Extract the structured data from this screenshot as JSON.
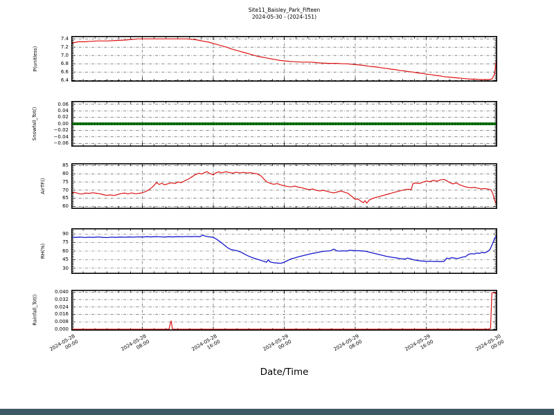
{
  "title": {
    "line1": "Site11_Baisley_Park_Fifteen",
    "line2": "2024-05-30 - (2024-151)"
  },
  "xlabel": "Date/Time",
  "chart_data": {
    "type": "line",
    "title": "Site11_Baisley_Park_Fifteen 2024-05-30 - (2024-151)",
    "xlabel": "Date/Time",
    "x_unit": "hours since 2024-05-28 00:00",
    "xlim": [
      0,
      48
    ],
    "grid": "dash-dot, major ticks only",
    "x_ticks": [
      {
        "hour": 0,
        "date": "2024-05-28",
        "time": "00:00"
      },
      {
        "hour": 8,
        "date": "2024-05-28",
        "time": "08:00"
      },
      {
        "hour": 16,
        "date": "2024-05-28",
        "time": "16:00"
      },
      {
        "hour": 24,
        "date": "2024-05-29",
        "time": "00:00"
      },
      {
        "hour": 32,
        "date": "2024-05-29",
        "time": "08:00"
      },
      {
        "hour": 40,
        "date": "2024-05-29",
        "time": "16:00"
      },
      {
        "hour": 48,
        "date": "2024-05-30",
        "time": "00:00"
      }
    ],
    "panels": [
      {
        "id": "ph",
        "ylabel": "P(unitless)",
        "color": "#dd1111",
        "line_width": 1.2,
        "marker": false,
        "ylim": [
          6.37,
          7.47
        ],
        "yticks": [
          {
            "v": 7.4,
            "label": "7.4"
          },
          {
            "v": 7.2,
            "label": "7.2"
          },
          {
            "v": 7.0,
            "label": "7.0"
          },
          {
            "v": 6.8,
            "label": "6.8"
          },
          {
            "v": 6.6,
            "label": "6.6"
          },
          {
            "v": 6.4,
            "label": "6.4"
          }
        ],
        "x": [
          0,
          0.3,
          0.8,
          1.5,
          2,
          3,
          4,
          5,
          6,
          6.5,
          7,
          7.5,
          13,
          13.5,
          14,
          14.5,
          15,
          15.5,
          16,
          16.5,
          17,
          17.5,
          18,
          18.5,
          19,
          19.5,
          20,
          20.5,
          21,
          21.5,
          22,
          22.5,
          23,
          23.5,
          24,
          24.5,
          25,
          26,
          27,
          27.5,
          28,
          29,
          30,
          30.5,
          31,
          31.5,
          32,
          32.5,
          33,
          33.5,
          34,
          34.5,
          35,
          35.5,
          36,
          36.5,
          37,
          37.5,
          38,
          38.5,
          39,
          39.5,
          40,
          40.5,
          41,
          41.5,
          42,
          42.5,
          43,
          43.5,
          44,
          44.5,
          45,
          45.5,
          46,
          46.5,
          47,
          47.4,
          47.7,
          47.85,
          48
        ],
        "y": [
          7.29,
          7.31,
          7.33,
          7.33,
          7.34,
          7.35,
          7.35,
          7.36,
          7.37,
          7.38,
          7.39,
          7.4,
          7.4,
          7.39,
          7.38,
          7.36,
          7.34,
          7.32,
          7.29,
          7.26,
          7.23,
          7.2,
          7.16,
          7.13,
          7.1,
          7.07,
          7.04,
          7.01,
          6.98,
          6.96,
          6.94,
          6.92,
          6.9,
          6.88,
          6.87,
          6.86,
          6.85,
          6.84,
          6.84,
          6.83,
          6.82,
          6.81,
          6.81,
          6.8,
          6.8,
          6.79,
          6.78,
          6.77,
          6.76,
          6.74,
          6.73,
          6.72,
          6.7,
          6.69,
          6.67,
          6.66,
          6.64,
          6.63,
          6.61,
          6.6,
          6.58,
          6.57,
          6.55,
          6.54,
          6.52,
          6.51,
          6.49,
          6.48,
          6.47,
          6.46,
          6.45,
          6.44,
          6.43,
          6.43,
          6.42,
          6.42,
          6.42,
          6.43,
          6.55,
          6.8,
          7.0
        ]
      },
      {
        "id": "snowfall",
        "ylabel": "Snowfall_Tot()",
        "color": "#0b7c0b",
        "line_width": 4,
        "marker": true,
        "ylim": [
          -0.07,
          0.07
        ],
        "yticks": [
          {
            "v": 0.06,
            "label": "0.06"
          },
          {
            "v": 0.04,
            "label": "0.04"
          },
          {
            "v": 0.02,
            "label": "0.02"
          },
          {
            "v": 0.0,
            "label": "0.00"
          },
          {
            "v": -0.02,
            "label": "−0.02"
          },
          {
            "v": -0.04,
            "label": "−0.04"
          },
          {
            "v": -0.06,
            "label": "−0.06"
          }
        ],
        "x": [
          0,
          48
        ],
        "y": [
          0.0,
          0.0
        ]
      },
      {
        "id": "airtf",
        "ylabel": "AirTF()",
        "color": "#dd1111",
        "line_width": 1.2,
        "marker": false,
        "ylim": [
          58.5,
          86.5
        ],
        "yticks": [
          {
            "v": 85,
            "label": "85"
          },
          {
            "v": 80,
            "label": "80"
          },
          {
            "v": 75,
            "label": "75"
          },
          {
            "v": 70,
            "label": "70"
          },
          {
            "v": 65,
            "label": "65"
          },
          {
            "v": 60,
            "label": "60"
          }
        ],
        "x": [
          0,
          0.4,
          0.8,
          1.2,
          1.6,
          2,
          2.4,
          2.8,
          3.2,
          3.6,
          4,
          4.4,
          4.8,
          5.2,
          5.6,
          6,
          6.4,
          6.8,
          7.2,
          7.6,
          8,
          8.4,
          8.8,
          9.2,
          9.6,
          9.9,
          10.2,
          10.5,
          10.9,
          11.3,
          11.7,
          12,
          12.4,
          12.8,
          13.2,
          13.6,
          14,
          14.4,
          14.7,
          15,
          15.3,
          15.6,
          16,
          16.3,
          16.6,
          17,
          17.4,
          17.8,
          18.2,
          18.6,
          19,
          19.4,
          19.8,
          20.2,
          20.6,
          21,
          21.4,
          21.7,
          22,
          22.4,
          22.8,
          23.2,
          23.6,
          24,
          24.4,
          24.8,
          25.2,
          25.6,
          26,
          26.4,
          26.8,
          27.2,
          27.6,
          28,
          28.4,
          28.8,
          29.2,
          29.6,
          30,
          30.4,
          30.8,
          31.2,
          31.4,
          31.7,
          32,
          32.3,
          32.6,
          32.9,
          33.1,
          33.3,
          33.6,
          34,
          34.5,
          35,
          35.5,
          36,
          36.5,
          37,
          37.5,
          38,
          38.3,
          38.5,
          38.8,
          39.2,
          39.6,
          40,
          40.4,
          40.8,
          41.2,
          41.6,
          42,
          42.3,
          42.6,
          43,
          43.4,
          43.8,
          44.2,
          44.6,
          45,
          45.4,
          45.8,
          46.2,
          46.6,
          47,
          47.3,
          47.5,
          47.7,
          47.85,
          48
        ],
        "y": [
          68.2,
          68.6,
          67.9,
          67.6,
          68.2,
          68.0,
          68.4,
          68.1,
          67.8,
          67.2,
          66.8,
          67.1,
          66.7,
          67.3,
          67.9,
          68.2,
          67.7,
          68.3,
          67.8,
          68.0,
          68.4,
          69.2,
          70.4,
          72.2,
          74.6,
          73.5,
          74.2,
          73.3,
          73.9,
          74.5,
          74.0,
          75.0,
          74.6,
          75.8,
          76.8,
          78.2,
          79.6,
          80.4,
          79.8,
          80.8,
          81.3,
          80.2,
          79.4,
          80.6,
          81.2,
          80.6,
          81.3,
          80.8,
          80.4,
          81.0,
          80.6,
          80.9,
          80.5,
          80.7,
          80.3,
          79.9,
          78.6,
          76.8,
          75.2,
          74.2,
          73.6,
          74.0,
          73.2,
          72.6,
          72.2,
          72.0,
          72.5,
          71.8,
          71.4,
          70.8,
          70.3,
          70.7,
          69.9,
          69.5,
          69.9,
          69.3,
          68.7,
          68.3,
          68.9,
          69.5,
          68.7,
          68.0,
          67.0,
          65.8,
          64.3,
          64.6,
          63.4,
          62.3,
          63.5,
          62.0,
          64.0,
          65.0,
          65.8,
          66.5,
          67.3,
          68.0,
          68.8,
          69.5,
          70.2,
          70.6,
          70.2,
          74.0,
          74.4,
          74.0,
          74.8,
          75.6,
          75.2,
          76.0,
          75.5,
          76.3,
          76.6,
          75.8,
          74.8,
          73.8,
          74.4,
          73.2,
          72.4,
          71.8,
          71.4,
          71.7,
          71.2,
          70.8,
          71.0,
          70.6,
          70.2,
          68.0,
          64.0,
          62.0,
          61.6
        ]
      },
      {
        "id": "rh",
        "ylabel": "RH(%)",
        "color": "#1515cc",
        "line_width": 1.3,
        "marker": false,
        "ylim": [
          20,
          100
        ],
        "yticks": [
          {
            "v": 90,
            "label": "90"
          },
          {
            "v": 75,
            "label": "75"
          },
          {
            "v": 60,
            "label": "60"
          },
          {
            "v": 45,
            "label": "45"
          },
          {
            "v": 30,
            "label": "30"
          }
        ],
        "x": [
          0,
          0.5,
          1,
          1.5,
          2,
          2.5,
          3,
          3.5,
          4,
          4.5,
          5,
          5.5,
          6,
          6.5,
          7,
          7.5,
          8,
          8.5,
          9,
          9.5,
          10,
          10.5,
          11,
          11.5,
          12,
          12.5,
          13,
          13.5,
          14,
          14.5,
          14.8,
          15.1,
          15.5,
          16,
          16.4,
          16.8,
          17.2,
          17.6,
          18,
          18.4,
          18.8,
          19.2,
          19.6,
          20,
          20.4,
          20.8,
          21.2,
          21.6,
          22,
          22.2,
          22.4,
          22.8,
          23.2,
          23.6,
          24,
          24.4,
          24.8,
          25.2,
          25.6,
          26,
          26.4,
          26.8,
          27.2,
          27.6,
          28,
          28.4,
          28.8,
          29.2,
          29.6,
          29.9,
          30.2,
          30.6,
          31,
          31.4,
          31.7,
          32,
          32.4,
          32.8,
          33.2,
          33.6,
          34,
          34.4,
          34.8,
          35.2,
          35.6,
          36,
          36.4,
          36.8,
          37.2,
          37.6,
          37.9,
          38.2,
          38.5,
          38.8,
          39.2,
          39.6,
          40,
          40.4,
          40.8,
          41.2,
          41.6,
          42,
          42.3,
          42.6,
          42.9,
          43.2,
          43.5,
          43.8,
          44.1,
          44.4,
          44.8,
          45.1,
          45.4,
          45.7,
          46,
          46.3,
          46.6,
          46.9,
          47.2,
          47.5,
          47.7,
          47.9,
          48
        ],
        "y": [
          84.5,
          84.0,
          84.6,
          83.8,
          84.4,
          84.0,
          84.8,
          84.0,
          83.6,
          84.4,
          84.0,
          84.6,
          84.2,
          84.8,
          84.4,
          85.0,
          84.6,
          85.2,
          84.8,
          85.4,
          85.0,
          84.6,
          85.2,
          84.8,
          85.4,
          85.0,
          85.6,
          85.2,
          85.6,
          85.2,
          88.0,
          86.2,
          85.0,
          84.0,
          80.5,
          76.0,
          71.0,
          66.0,
          62.5,
          61.5,
          60.0,
          57.5,
          54.0,
          51.0,
          48.5,
          46.5,
          44.5,
          42.5,
          40.5,
          45.0,
          41.0,
          39.5,
          39.0,
          38.6,
          40.5,
          43.5,
          46.5,
          48.0,
          50.0,
          51.5,
          53.0,
          54.5,
          56.0,
          57.0,
          58.5,
          59.5,
          60.0,
          60.5,
          63.5,
          60.5,
          60.0,
          60.5,
          60.0,
          61.5,
          61.0,
          60.5,
          60.8,
          60.2,
          59.5,
          58.0,
          56.5,
          55.0,
          53.5,
          52.0,
          50.5,
          49.5,
          48.5,
          47.5,
          46.5,
          46.0,
          47.8,
          46.5,
          45.0,
          44.0,
          43.0,
          42.5,
          42.0,
          42.3,
          41.8,
          42.0,
          41.6,
          41.9,
          47.5,
          47.0,
          48.5,
          47.5,
          47.0,
          48.0,
          49.5,
          50.0,
          54.5,
          55.5,
          54.8,
          56.5,
          56.0,
          57.5,
          57.0,
          59.0,
          63.0,
          74.0,
          82.0,
          86.5,
          87.0
        ]
      },
      {
        "id": "rainfall",
        "ylabel": "Rainfall_Tot()",
        "color": "#dd1111",
        "line_width": 1.2,
        "marker": false,
        "ylim": [
          -0.0015,
          0.0425
        ],
        "yticks": [
          {
            "v": 0.04,
            "label": "0.040"
          },
          {
            "v": 0.032,
            "label": "0.032"
          },
          {
            "v": 0.024,
            "label": "0.024"
          },
          {
            "v": 0.016,
            "label": "0.016"
          },
          {
            "v": 0.008,
            "label": "0.008"
          },
          {
            "v": 0.0,
            "label": "0.000"
          }
        ],
        "x": [
          0,
          11.0,
          11.15,
          11.25,
          11.4,
          47.0,
          47.25,
          47.4,
          47.6,
          48
        ],
        "y": [
          0,
          0,
          0.006,
          0.009,
          0,
          0,
          0.001,
          0.039,
          0.0395,
          0.0385
        ]
      }
    ]
  }
}
